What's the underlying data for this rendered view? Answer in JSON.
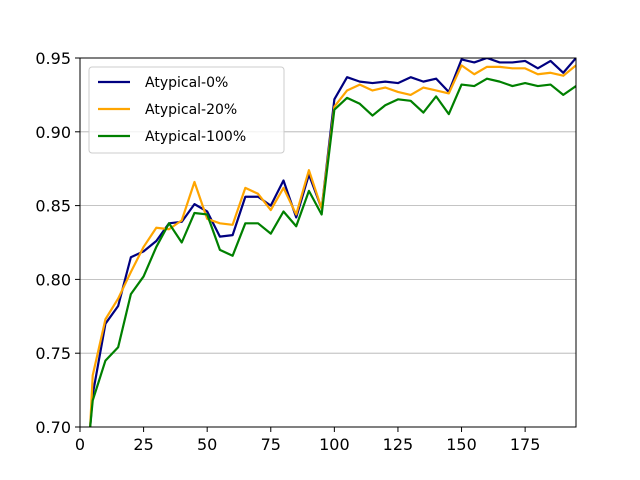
{
  "chart_data": {
    "type": "line",
    "title": "",
    "xlabel": "",
    "ylabel": "",
    "xlim": [
      0,
      195
    ],
    "ylim": [
      0.7,
      0.95
    ],
    "x_ticks": [
      0,
      25,
      50,
      75,
      100,
      125,
      150,
      175
    ],
    "x_tick_labels": [
      "0",
      "25",
      "50",
      "75",
      "100",
      "125",
      "150",
      "175"
    ],
    "y_ticks": [
      0.7,
      0.75,
      0.8,
      0.85,
      0.9,
      0.95
    ],
    "y_tick_labels": [
      "0.70",
      "0.75",
      "0.80",
      "0.85",
      "0.90",
      "0.95"
    ],
    "grid": "horizontal",
    "legend_position": "top-left",
    "x": [
      4,
      5,
      10,
      15,
      20,
      25,
      30,
      35,
      40,
      45,
      50,
      55,
      60,
      65,
      70,
      75,
      80,
      85,
      90,
      95,
      100,
      105,
      110,
      115,
      120,
      125,
      130,
      135,
      140,
      145,
      150,
      155,
      160,
      165,
      170,
      175,
      180,
      185,
      190,
      195
    ],
    "series": [
      {
        "name": "Atypical-0%",
        "color": "#000080",
        "values": [
          0.7,
          0.722,
          0.77,
          0.782,
          0.815,
          0.819,
          0.826,
          0.838,
          0.839,
          0.851,
          0.846,
          0.829,
          0.83,
          0.856,
          0.856,
          0.85,
          0.867,
          0.842,
          0.871,
          0.848,
          0.922,
          0.937,
          0.934,
          0.933,
          0.934,
          0.933,
          0.937,
          0.934,
          0.936,
          0.927,
          0.949,
          0.947,
          0.95,
          0.947,
          0.947,
          0.948,
          0.943,
          0.948,
          0.94,
          0.95
        ]
      },
      {
        "name": "Atypical-20%",
        "color": "#FFA500",
        "values": [
          0.7,
          0.735,
          0.773,
          0.787,
          0.805,
          0.822,
          0.835,
          0.834,
          0.84,
          0.866,
          0.841,
          0.838,
          0.837,
          0.862,
          0.858,
          0.847,
          0.862,
          0.844,
          0.874,
          0.848,
          0.917,
          0.928,
          0.932,
          0.928,
          0.93,
          0.927,
          0.925,
          0.93,
          0.928,
          0.926,
          0.945,
          0.939,
          0.944,
          0.944,
          0.943,
          0.943,
          0.939,
          0.94,
          0.938,
          0.945
        ]
      },
      {
        "name": "Atypical-100%",
        "color": "#008000",
        "values": [
          0.7,
          0.718,
          0.745,
          0.754,
          0.79,
          0.802,
          0.822,
          0.838,
          0.825,
          0.845,
          0.844,
          0.82,
          0.816,
          0.838,
          0.838,
          0.831,
          0.846,
          0.836,
          0.86,
          0.844,
          0.915,
          0.923,
          0.919,
          0.911,
          0.918,
          0.922,
          0.921,
          0.913,
          0.924,
          0.912,
          0.932,
          0.931,
          0.936,
          0.934,
          0.931,
          0.933,
          0.931,
          0.932,
          0.925,
          0.931
        ]
      }
    ]
  }
}
